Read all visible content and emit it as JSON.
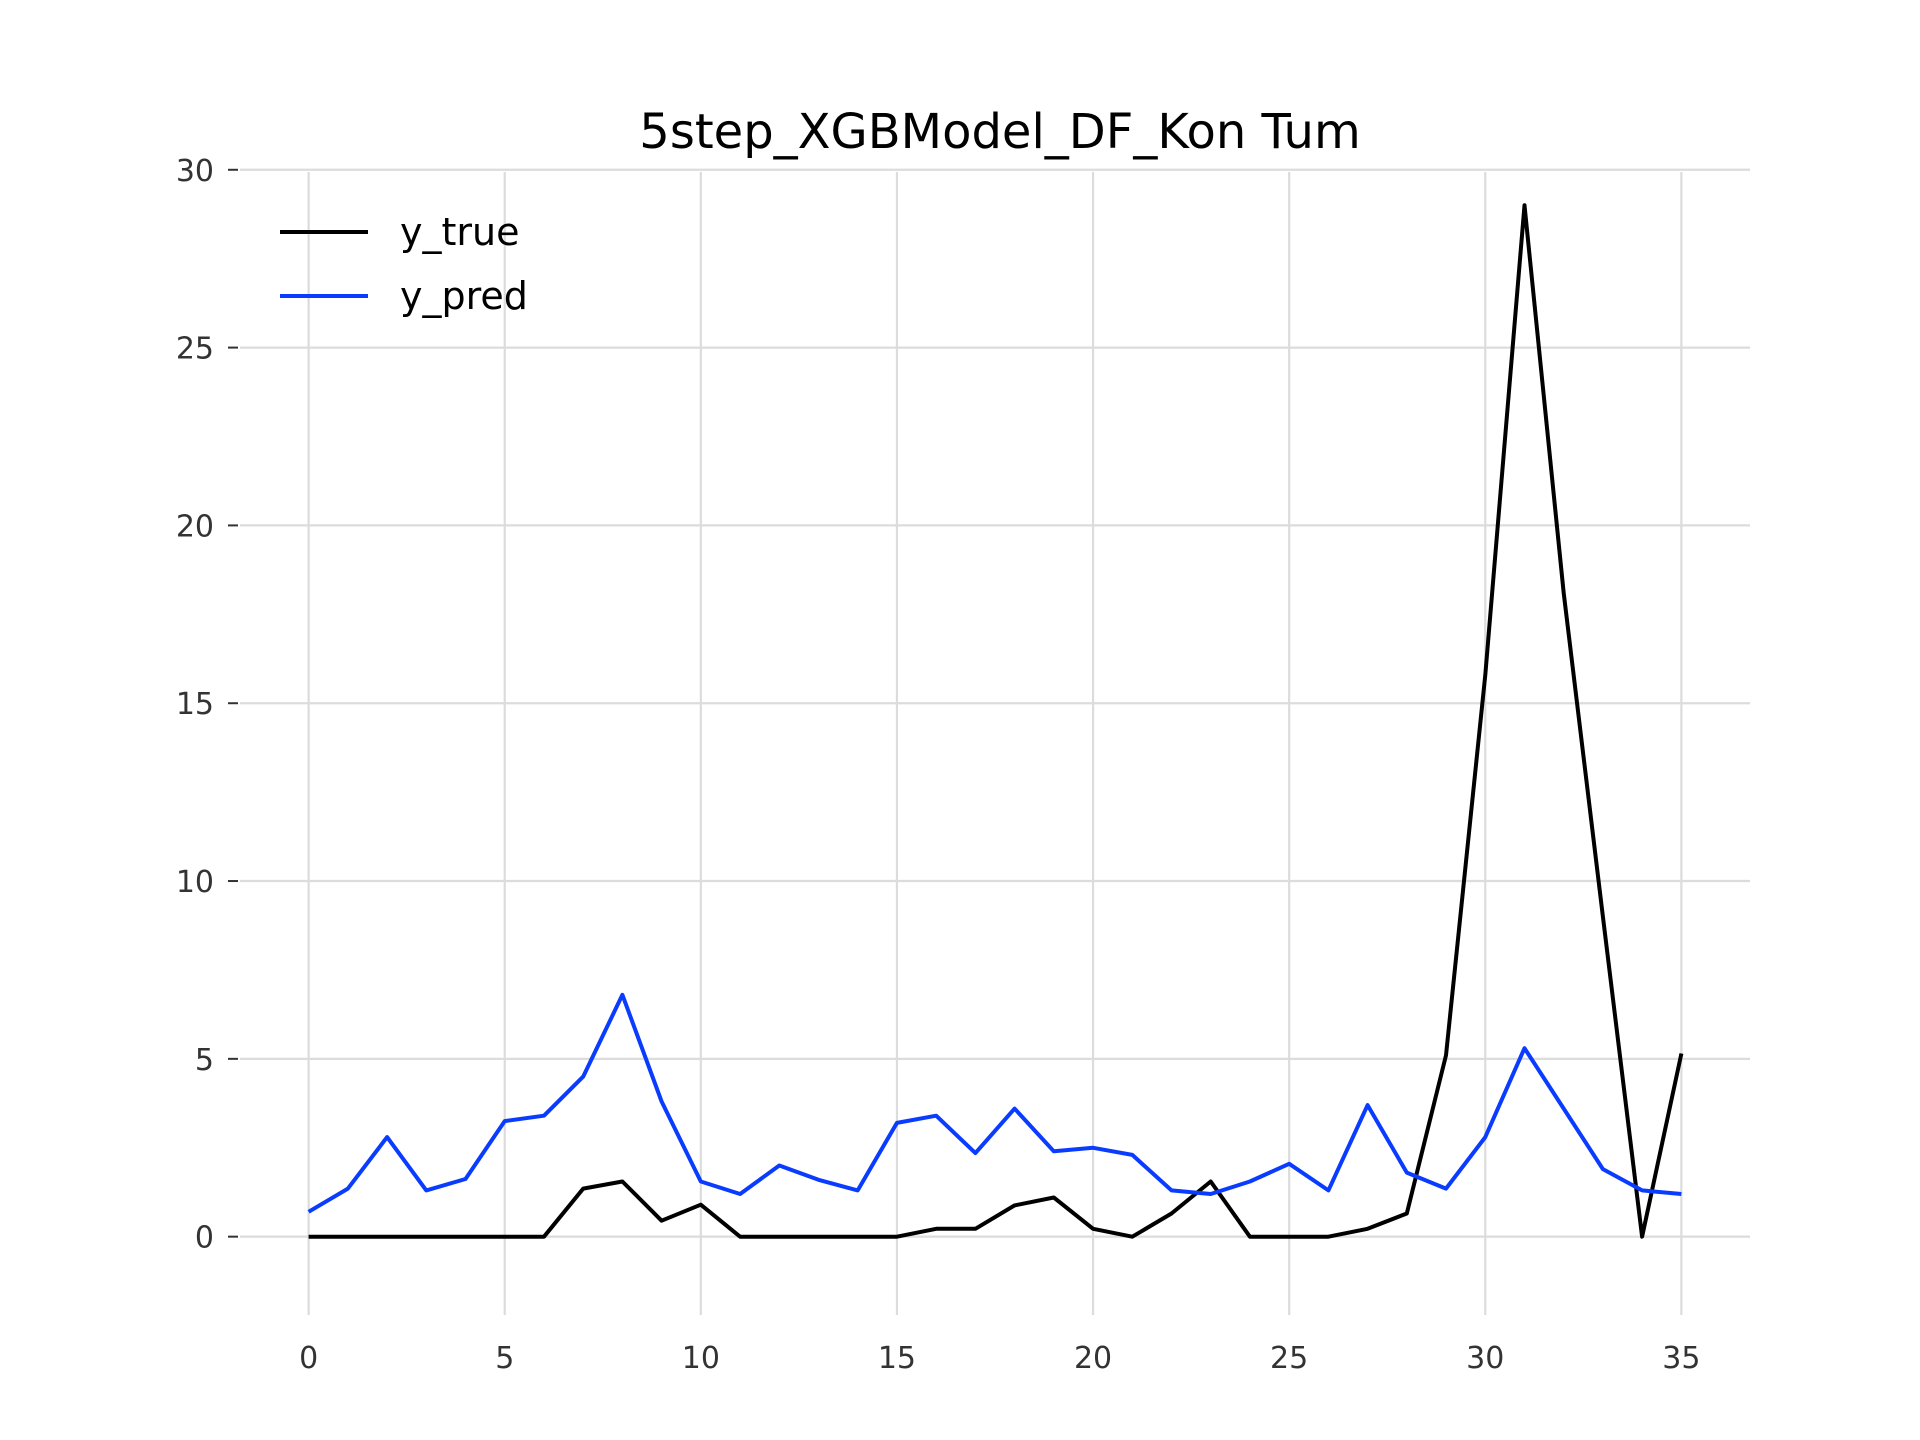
{
  "chart_data": {
    "type": "line",
    "title": "5step_XGBModel_DF_Kon Tum",
    "xlabel": "",
    "ylabel": "",
    "xlim": [
      -1.75,
      36.75
    ],
    "ylim": [
      -1.5,
      30.5
    ],
    "x_ticks": [
      0,
      5,
      10,
      15,
      20,
      25,
      30,
      35
    ],
    "y_ticks": [
      0,
      5,
      10,
      15,
      20,
      25,
      30
    ],
    "grid": true,
    "legend": {
      "position": "top-left"
    },
    "x": [
      0,
      1,
      2,
      3,
      4,
      5,
      6,
      7,
      8,
      9,
      10,
      11,
      12,
      13,
      14,
      15,
      16,
      17,
      18,
      19,
      20,
      21,
      22,
      23,
      24,
      25,
      26,
      27,
      28,
      29,
      30,
      31,
      32,
      33,
      34,
      35
    ],
    "series": [
      {
        "name": "y_true",
        "color": "#000000",
        "values": [
          0,
          0,
          0,
          0,
          0,
          0,
          0,
          1.35,
          1.55,
          0.45,
          0.9,
          0,
          0,
          0,
          0,
          0,
          0.22,
          0.22,
          0.88,
          1.1,
          0.22,
          0,
          0.65,
          1.55,
          0,
          0,
          0,
          0.22,
          0.65,
          5.1,
          15.8,
          29.0,
          18.1,
          9.0,
          0,
          5.15
        ]
      },
      {
        "name": "y_pred",
        "color": "#0a3cff",
        "values": [
          0.7,
          1.35,
          2.8,
          1.3,
          1.62,
          3.25,
          3.4,
          4.5,
          6.8,
          3.8,
          1.55,
          1.2,
          2.0,
          1.6,
          1.3,
          3.2,
          3.4,
          2.35,
          3.6,
          2.4,
          2.5,
          2.3,
          1.3,
          1.2,
          1.55,
          2.05,
          1.3,
          3.7,
          1.8,
          1.35,
          2.8,
          5.3,
          3.6,
          1.9,
          1.3,
          1.2
        ]
      }
    ]
  }
}
